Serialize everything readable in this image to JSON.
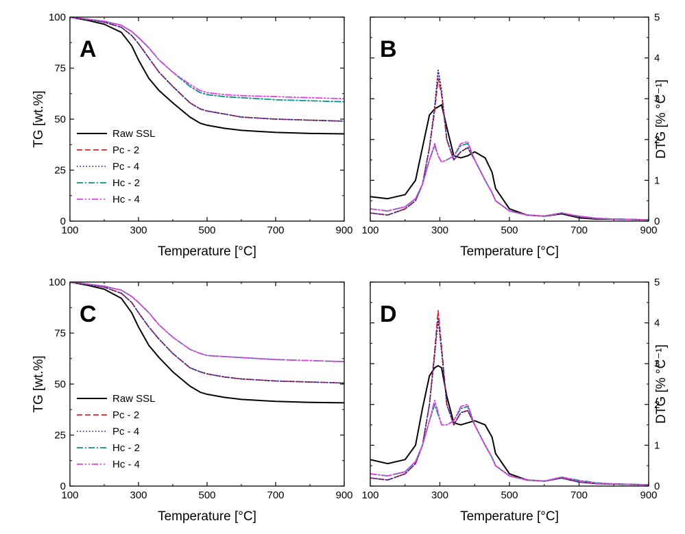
{
  "series_styles": [
    {
      "name": "Raw SSL",
      "color": "#000000",
      "dash": ""
    },
    {
      "name": "Pc - 2",
      "color": "#e8202a",
      "dash": "8,4"
    },
    {
      "name": "Pc - 4",
      "color": "#2e2e9a",
      "dash": "1.5,3"
    },
    {
      "name": "Hc - 2",
      "color": "#0b8f8a",
      "dash": "9,3,2,3"
    },
    {
      "name": "Hc - 4",
      "color": "#e040e0",
      "dash": "9,3,2,3,2,3"
    }
  ],
  "chart_data": [
    {
      "panel": "A",
      "type": "line",
      "xlabel": "Temperature [°C]",
      "ylabel": "TG [wt.%]",
      "xlim": [
        100,
        900
      ],
      "ylim": [
        0,
        100
      ],
      "xticks": [
        100,
        300,
        500,
        700,
        900
      ],
      "yticks": [
        0,
        25,
        50,
        75,
        100
      ],
      "legend": "bottom-left",
      "x": [
        100,
        150,
        200,
        250,
        280,
        300,
        330,
        360,
        400,
        450,
        480,
        500,
        550,
        600,
        700,
        800,
        900
      ],
      "series": [
        {
          "name": "Raw SSL",
          "values": [
            100,
            98.5,
            96.5,
            92.5,
            86,
            79,
            70,
            64,
            58,
            51,
            48,
            47,
            45.5,
            44.5,
            43.5,
            43,
            42.8
          ]
        },
        {
          "name": "Pc - 2",
          "values": [
            100,
            99,
            97.5,
            95,
            91,
            87,
            80,
            73,
            66,
            58,
            55,
            54,
            52.5,
            51,
            50,
            49.5,
            49
          ]
        },
        {
          "name": "Pc - 4",
          "values": [
            100,
            99,
            97.5,
            95,
            91,
            87,
            80,
            73,
            66,
            58,
            55,
            54,
            52.5,
            51,
            50,
            49.5,
            49
          ]
        },
        {
          "name": "Hc - 2",
          "values": [
            100,
            99,
            98,
            96,
            93,
            90,
            85,
            79,
            73,
            66,
            63,
            62,
            61,
            60.5,
            59.5,
            59,
            58.5
          ]
        },
        {
          "name": "Hc - 4",
          "values": [
            100,
            99,
            98,
            96,
            93,
            90,
            85,
            79,
            73,
            67,
            64,
            63,
            62,
            61.5,
            61,
            60.5,
            60
          ]
        }
      ]
    },
    {
      "panel": "B",
      "type": "line",
      "xlabel": "Temperature [°C]",
      "ylabel": "DTG [% °C⁻¹]",
      "xlim": [
        100,
        900
      ],
      "ylim": [
        0,
        5
      ],
      "xticks": [
        100,
        300,
        500,
        700,
        900
      ],
      "yticks": [
        0,
        1,
        2,
        3,
        4,
        5
      ],
      "x": [
        100,
        150,
        200,
        230,
        250,
        270,
        285,
        295,
        305,
        320,
        340,
        360,
        380,
        400,
        430,
        450,
        460,
        500,
        550,
        600,
        650,
        700,
        750,
        800,
        850,
        900
      ],
      "series": [
        {
          "name": "Raw SSL",
          "values": [
            0.6,
            0.55,
            0.65,
            1.0,
            1.8,
            2.6,
            2.75,
            2.8,
            2.85,
            2.3,
            1.6,
            1.55,
            1.6,
            1.7,
            1.55,
            1.2,
            0.8,
            0.3,
            0.15,
            0.12,
            0.18,
            0.08,
            0.05,
            0.05,
            0.04,
            0.03
          ]
        },
        {
          "name": "Pc - 2",
          "values": [
            0.2,
            0.15,
            0.3,
            0.5,
            0.9,
            1.8,
            2.7,
            3.5,
            3.1,
            2.0,
            1.5,
            1.7,
            1.8,
            1.5,
            1.0,
            0.7,
            0.5,
            0.25,
            0.15,
            0.12,
            0.2,
            0.1,
            0.06,
            0.05,
            0.04,
            0.03
          ]
        },
        {
          "name": "Pc - 4",
          "values": [
            0.2,
            0.15,
            0.3,
            0.5,
            0.9,
            1.8,
            2.8,
            3.7,
            3.2,
            2.0,
            1.5,
            1.7,
            1.8,
            1.5,
            1.0,
            0.7,
            0.5,
            0.25,
            0.15,
            0.12,
            0.2,
            0.1,
            0.06,
            0.05,
            0.04,
            0.03
          ]
        },
        {
          "name": "Hc - 2",
          "values": [
            0.3,
            0.25,
            0.35,
            0.55,
            0.9,
            1.5,
            1.85,
            1.6,
            1.45,
            1.5,
            1.6,
            1.85,
            1.9,
            1.5,
            1.0,
            0.7,
            0.5,
            0.25,
            0.15,
            0.12,
            0.2,
            0.12,
            0.07,
            0.05,
            0.04,
            0.03
          ]
        },
        {
          "name": "Hc - 4",
          "values": [
            0.3,
            0.25,
            0.35,
            0.55,
            0.9,
            1.5,
            1.9,
            1.6,
            1.45,
            1.5,
            1.6,
            1.9,
            1.95,
            1.5,
            1.0,
            0.7,
            0.5,
            0.25,
            0.15,
            0.12,
            0.2,
            0.12,
            0.07,
            0.05,
            0.04,
            0.03
          ]
        }
      ]
    },
    {
      "panel": "C",
      "type": "line",
      "xlabel": "Temperature [°C]",
      "ylabel": "TG [wt.%]",
      "xlim": [
        100,
        900
      ],
      "ylim": [
        0,
        100
      ],
      "xticks": [
        100,
        300,
        500,
        700,
        900
      ],
      "yticks": [
        0,
        25,
        50,
        75,
        100
      ],
      "legend": "bottom-left",
      "x": [
        100,
        150,
        200,
        250,
        280,
        300,
        330,
        360,
        400,
        450,
        480,
        500,
        550,
        600,
        700,
        800,
        900
      ],
      "series": [
        {
          "name": "Raw SSL",
          "values": [
            100,
            98.5,
            96.5,
            92,
            85,
            78,
            69,
            63,
            56,
            49,
            46,
            45,
            43.5,
            42.5,
            41.5,
            41,
            40.8
          ]
        },
        {
          "name": "Pc - 2",
          "values": [
            100,
            99,
            97.5,
            94.5,
            90,
            85,
            78,
            72,
            65,
            58,
            56,
            55,
            53.5,
            52.5,
            51.5,
            51,
            50.5
          ]
        },
        {
          "name": "Pc - 4",
          "values": [
            100,
            99,
            97.5,
            94.5,
            90,
            85,
            78,
            72,
            65,
            58,
            56,
            55,
            53.5,
            52.5,
            51.5,
            51,
            50.5
          ]
        },
        {
          "name": "Hc - 2",
          "values": [
            100,
            99,
            98,
            96,
            93,
            90,
            85,
            79,
            73,
            67,
            65,
            64,
            63.5,
            63,
            62,
            61.5,
            61
          ]
        },
        {
          "name": "Hc - 4",
          "values": [
            100,
            99,
            98,
            96,
            93,
            90,
            85,
            79,
            73,
            67,
            65,
            64,
            63.5,
            63,
            62,
            61.5,
            61
          ]
        }
      ]
    },
    {
      "panel": "D",
      "type": "line",
      "xlabel": "Temperature [°C]",
      "ylabel": "DTG [% °C⁻¹]",
      "xlim": [
        100,
        900
      ],
      "ylim": [
        0,
        5
      ],
      "xticks": [
        100,
        300,
        500,
        700,
        900
      ],
      "yticks": [
        0,
        1,
        2,
        3,
        4,
        5
      ],
      "x": [
        100,
        150,
        200,
        230,
        250,
        270,
        285,
        295,
        305,
        320,
        340,
        360,
        380,
        400,
        430,
        450,
        460,
        500,
        550,
        600,
        650,
        700,
        750,
        800,
        850,
        900
      ],
      "series": [
        {
          "name": "Raw SSL",
          "values": [
            0.65,
            0.55,
            0.65,
            1.0,
            1.9,
            2.7,
            2.9,
            2.95,
            2.9,
            2.2,
            1.55,
            1.5,
            1.55,
            1.6,
            1.5,
            1.2,
            0.8,
            0.3,
            0.15,
            0.12,
            0.2,
            0.1,
            0.06,
            0.05,
            0.04,
            0.03
          ]
        },
        {
          "name": "Pc - 2",
          "values": [
            0.2,
            0.15,
            0.3,
            0.55,
            1.0,
            2.0,
            3.3,
            4.3,
            3.4,
            2.0,
            1.5,
            1.8,
            1.85,
            1.5,
            1.0,
            0.7,
            0.5,
            0.25,
            0.15,
            0.12,
            0.2,
            0.1,
            0.06,
            0.05,
            0.04,
            0.03
          ]
        },
        {
          "name": "Pc - 4",
          "values": [
            0.2,
            0.15,
            0.3,
            0.55,
            1.0,
            2.0,
            3.2,
            4.1,
            3.3,
            2.0,
            1.5,
            1.8,
            1.85,
            1.5,
            1.0,
            0.7,
            0.5,
            0.25,
            0.15,
            0.12,
            0.2,
            0.1,
            0.06,
            0.05,
            0.04,
            0.03
          ]
        },
        {
          "name": "Hc - 2",
          "values": [
            0.3,
            0.25,
            0.35,
            0.6,
            1.0,
            1.6,
            2.0,
            1.75,
            1.5,
            1.5,
            1.6,
            1.9,
            1.95,
            1.5,
            1.0,
            0.7,
            0.5,
            0.25,
            0.15,
            0.12,
            0.22,
            0.14,
            0.08,
            0.05,
            0.04,
            0.03
          ]
        },
        {
          "name": "Hc - 4",
          "values": [
            0.3,
            0.25,
            0.35,
            0.6,
            1.0,
            1.6,
            2.1,
            1.8,
            1.5,
            1.5,
            1.6,
            1.95,
            2.0,
            1.5,
            1.0,
            0.7,
            0.5,
            0.25,
            0.15,
            0.12,
            0.22,
            0.12,
            0.07,
            0.05,
            0.04,
            0.03
          ]
        }
      ]
    }
  ]
}
